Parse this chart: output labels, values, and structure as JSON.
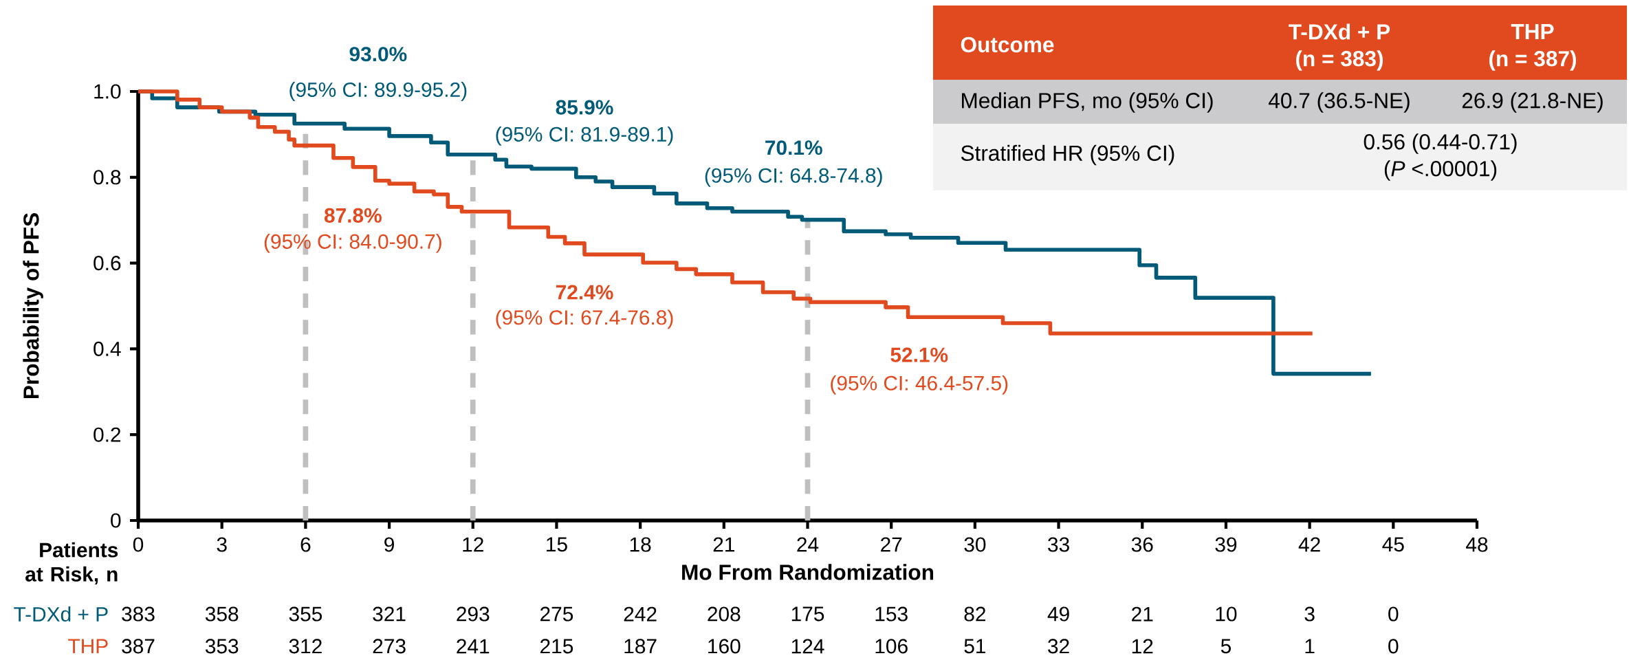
{
  "chart_data": [
    {
      "type": "step",
      "xlabel": "Mo From Randomization",
      "ylabel": "Probability of PFS",
      "xlim": [
        0,
        48
      ],
      "ylim": [
        0,
        1
      ],
      "xticks": [
        0,
        3,
        6,
        9,
        12,
        15,
        18,
        21,
        24,
        27,
        30,
        33,
        36,
        39,
        42,
        45,
        48
      ],
      "yticks": [
        0,
        0.2,
        0.4,
        0.6,
        0.8,
        {
          "value": 1,
          "label": "1.0"
        }
      ],
      "series": [
        {
          "name": "T-DXd + P",
          "color": "#005a78",
          "x": [
            0,
            0.5,
            1.4,
            2.9,
            4.2,
            5.6,
            7.4,
            9.0,
            10.5,
            11.1,
            12.8,
            13.2,
            14.1,
            15.7,
            16.4,
            17.0,
            18.5,
            19.3,
            20.4,
            21.3,
            23.3,
            23.8,
            25.3,
            26.8,
            27.7,
            29.4,
            31.1,
            35.9,
            36.5,
            37.9,
            40.7,
            44.2
          ],
          "values": [
            1.0,
            0.984,
            0.963,
            0.953,
            0.946,
            0.925,
            0.913,
            0.896,
            0.881,
            0.853,
            0.841,
            0.825,
            0.82,
            0.8,
            0.79,
            0.777,
            0.762,
            0.739,
            0.728,
            0.72,
            0.708,
            0.701,
            0.674,
            0.667,
            0.659,
            0.647,
            0.631,
            0.595,
            0.566,
            0.519,
            0.342,
            0.342
          ]
        },
        {
          "name": "THP",
          "color": "#e04a1e",
          "x": [
            0,
            1.4,
            2.2,
            3.0,
            4.0,
            4.3,
            4.9,
            5.4,
            5.6,
            7.0,
            7.7,
            8.5,
            9.0,
            9.9,
            10.6,
            11.1,
            11.6,
            13.3,
            14.7,
            15.3,
            16.0,
            18.1,
            19.3,
            20.0,
            21.3,
            22.4,
            23.5,
            24.1,
            26.8,
            27.6,
            31.0,
            32.7,
            42.1
          ],
          "values": [
            1.0,
            0.981,
            0.963,
            0.953,
            0.939,
            0.917,
            0.906,
            0.888,
            0.874,
            0.845,
            0.824,
            0.792,
            0.785,
            0.767,
            0.76,
            0.731,
            0.72,
            0.683,
            0.661,
            0.646,
            0.62,
            0.601,
            0.586,
            0.574,
            0.555,
            0.532,
            0.517,
            0.509,
            0.497,
            0.474,
            0.46,
            0.436,
            0.436
          ]
        }
      ],
      "ref_lines": [
        {
          "axis": "x",
          "value": 6,
          "color": "#bfbfbf",
          "line_style": "dashed"
        },
        {
          "axis": "x",
          "value": 12,
          "color": "#bfbfbf",
          "line_style": "dashed"
        },
        {
          "axis": "x",
          "value": 24,
          "color": "#bfbfbf",
          "line_style": "dashed"
        }
      ],
      "annotations": [
        "93.0%",
        "(95% CI: 89.9-95.2)",
        "85.9%",
        "(95% CI: 81.9-89.1)",
        "70.1%",
        "(95% CI: 64.8-74.8)",
        "87.8%",
        "(95% CI: 84.0-90.7)",
        "72.4%",
        "(95% CI: 67.4-76.8)",
        "52.1%",
        "(95% CI: 46.4-57.5)",
        "Patients at Risk, n",
        "383",
        "358",
        "355",
        "321",
        "293",
        "275",
        "242",
        "208",
        "175",
        "153",
        "82",
        "49",
        "21",
        "10",
        "3",
        "0",
        "387",
        "353",
        "312",
        "273",
        "241",
        "215",
        "187",
        "160",
        "124",
        "106",
        "51",
        "32",
        "12",
        "5",
        "1",
        "0"
      ]
    },
    {
      "type": "other",
      "annotations": [
        "Outcome",
        "T-DXd + P",
        "(n = 383)",
        "THP",
        "(n = 387)",
        "Median PFS, mo (95% CI)",
        "40.7 (36.5-NE)",
        "26.9 (21.8-NE)",
        "Stratified HR (95% CI)",
        "0.56 (0.44-0.71)",
        "(*P* <.00001)"
      ]
    }
  ]
}
